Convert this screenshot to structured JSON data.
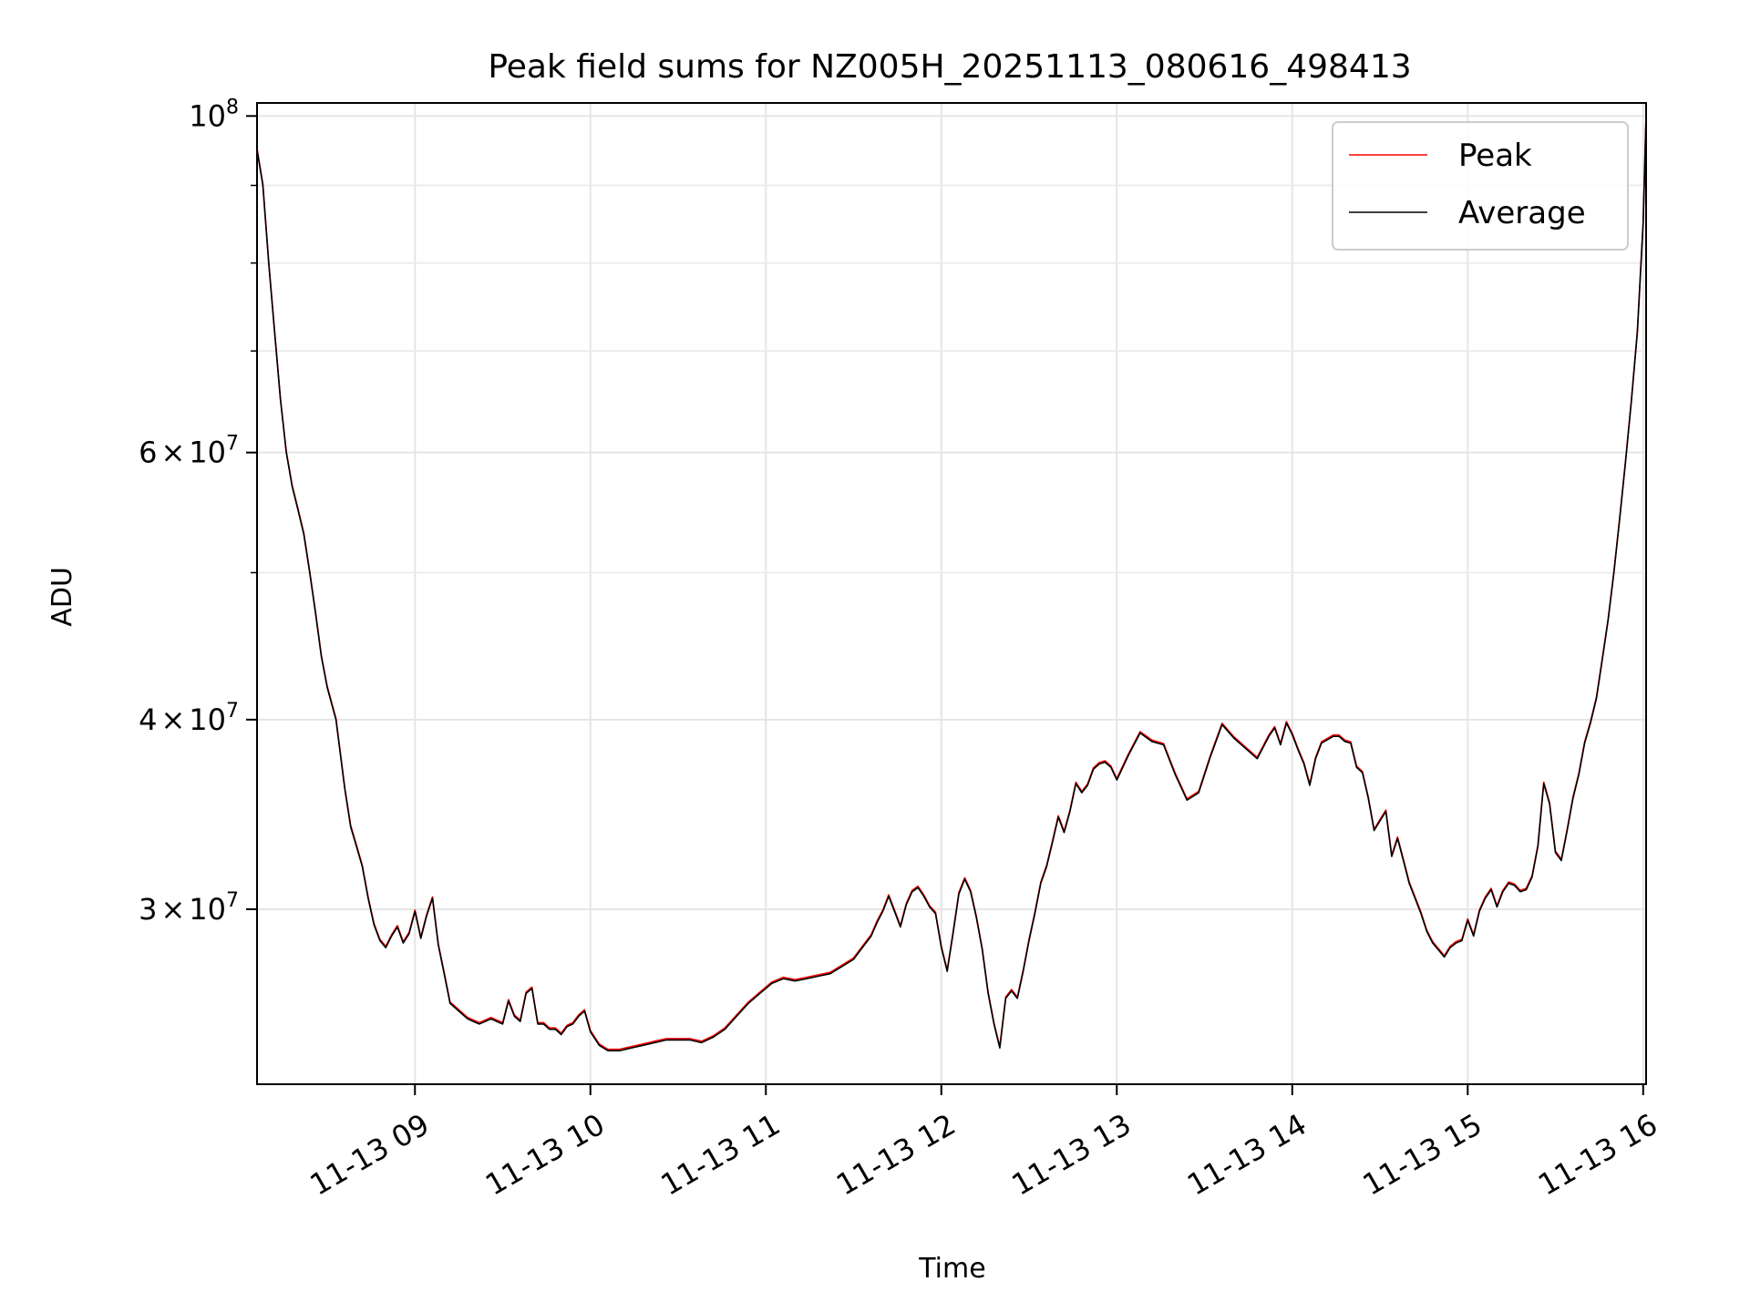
{
  "chart_data": {
    "type": "line",
    "title": "Peak field sums for NZ005H_20251113_080616_498413",
    "xlabel": "Time",
    "ylabel": "ADU",
    "yscale": "log",
    "grid": true,
    "legend_position": "top-right",
    "xlim": [
      "2025-11-13 08:06",
      "2025-11-13 16:01"
    ],
    "ylim": [
      23000000,
      102000000
    ],
    "x_ticks": [
      {
        "label": "11-13 09",
        "time": "2025-11-13 09:00"
      },
      {
        "label": "11-13 10",
        "time": "2025-11-13 10:00"
      },
      {
        "label": "11-13 11",
        "time": "2025-11-13 11:00"
      },
      {
        "label": "11-13 12",
        "time": "2025-11-13 12:00"
      },
      {
        "label": "11-13 13",
        "time": "2025-11-13 13:00"
      },
      {
        "label": "11-13 14",
        "time": "2025-11-13 14:00"
      },
      {
        "label": "11-13 15",
        "time": "2025-11-13 15:00"
      },
      {
        "label": "11-13 16",
        "time": "2025-11-13 16:00"
      }
    ],
    "y_ticks": [
      {
        "value": 100000000,
        "base": "10",
        "exp": "8"
      },
      {
        "value": 60000000,
        "mant": "6",
        "base": "10",
        "exp": "7"
      },
      {
        "value": 40000000,
        "mant": "4",
        "base": "10",
        "exp": "7"
      },
      {
        "value": 30000000,
        "mant": "3",
        "base": "10",
        "exp": "7"
      }
    ],
    "y_minor_ticks": [
      50000000,
      70000000,
      80000000,
      90000000
    ],
    "series": [
      {
        "name": "Peak",
        "color": "#ff0000"
      },
      {
        "name": "Average",
        "color": "#000000"
      }
    ],
    "x": [
      "08:06",
      "08:08",
      "08:10",
      "08:12",
      "08:14",
      "08:16",
      "08:18",
      "08:20",
      "08:22",
      "08:24",
      "08:26",
      "08:28",
      "08:30",
      "08:33",
      "08:36",
      "08:38",
      "08:40",
      "08:42",
      "08:44",
      "08:46",
      "08:48",
      "08:50",
      "08:52",
      "08:54",
      "08:56",
      "08:58",
      "09:00",
      "09:02",
      "09:04",
      "09:06",
      "09:08",
      "09:10",
      "09:12",
      "09:14",
      "09:16",
      "09:18",
      "09:20",
      "09:22",
      "09:24",
      "09:26",
      "09:28",
      "09:30",
      "09:32",
      "09:34",
      "09:36",
      "09:38",
      "09:40",
      "09:42",
      "09:44",
      "09:46",
      "09:48",
      "09:50",
      "09:52",
      "09:54",
      "09:56",
      "09:58",
      "10:00",
      "10:03",
      "10:06",
      "10:10",
      "10:14",
      "10:18",
      "10:22",
      "10:26",
      "10:30",
      "10:34",
      "10:38",
      "10:42",
      "10:46",
      "10:50",
      "10:54",
      "10:58",
      "11:02",
      "11:06",
      "11:10",
      "11:14",
      "11:18",
      "11:22",
      "11:26",
      "11:30",
      "11:33",
      "11:36",
      "11:38",
      "11:40",
      "11:42",
      "11:44",
      "11:46",
      "11:48",
      "11:50",
      "11:52",
      "11:54",
      "11:56",
      "11:58",
      "12:00",
      "12:02",
      "12:04",
      "12:06",
      "12:08",
      "12:10",
      "12:12",
      "12:14",
      "12:16",
      "12:18",
      "12:20",
      "12:22",
      "12:24",
      "12:26",
      "12:28",
      "12:30",
      "12:32",
      "12:34",
      "12:36",
      "12:38",
      "12:40",
      "12:42",
      "12:44",
      "12:46",
      "12:48",
      "12:50",
      "12:52",
      "12:54",
      "12:56",
      "12:58",
      "13:00",
      "13:04",
      "13:08",
      "13:12",
      "13:16",
      "13:20",
      "13:24",
      "13:28",
      "13:32",
      "13:36",
      "13:40",
      "13:44",
      "13:48",
      "13:52",
      "13:54",
      "13:56",
      "13:58",
      "14:00",
      "14:02",
      "14:04",
      "14:06",
      "14:08",
      "14:10",
      "14:12",
      "14:14",
      "14:16",
      "14:18",
      "14:20",
      "14:22",
      "14:24",
      "14:26",
      "14:28",
      "14:30",
      "14:32",
      "14:34",
      "14:36",
      "14:38",
      "14:40",
      "14:42",
      "14:44",
      "14:46",
      "14:48",
      "14:50",
      "14:52",
      "14:54",
      "14:56",
      "14:58",
      "15:00",
      "15:02",
      "15:04",
      "15:06",
      "15:08",
      "15:10",
      "15:12",
      "15:14",
      "15:16",
      "15:18",
      "15:20",
      "15:22",
      "15:24",
      "15:26",
      "15:28",
      "15:30",
      "15:32",
      "15:34",
      "15:36",
      "15:38",
      "15:40",
      "15:42",
      "15:44",
      "15:46",
      "15:48",
      "15:50",
      "15:52",
      "15:54",
      "15:56",
      "15:58",
      "16:00",
      "16:01"
    ],
    "y": [
      95000000,
      90000000,
      80000000,
      72000000,
      65000000,
      60000000,
      57000000,
      55000000,
      53000000,
      50000000,
      47000000,
      44000000,
      42000000,
      40000000,
      36000000,
      34000000,
      33000000,
      32000000,
      30500000,
      29300000,
      28600000,
      28300000,
      28800000,
      29200000,
      28500000,
      28900000,
      29900000,
      28700000,
      29700000,
      30500000,
      28400000,
      27200000,
      26000000,
      25800000,
      25600000,
      25400000,
      25300000,
      25200000,
      25300000,
      25400000,
      25300000,
      25200000,
      26100000,
      25500000,
      25300000,
      26400000,
      26600000,
      25200000,
      25200000,
      25000000,
      25000000,
      24800000,
      25100000,
      25200000,
      25500000,
      25700000,
      24900000,
      24400000,
      24200000,
      24200000,
      24300000,
      24400000,
      24500000,
      24600000,
      24600000,
      24600000,
      24500000,
      24700000,
      25000000,
      25500000,
      26000000,
      26400000,
      26800000,
      27000000,
      26900000,
      27000000,
      27100000,
      27200000,
      27500000,
      27800000,
      28300000,
      28800000,
      29400000,
      29900000,
      30600000,
      29900000,
      29200000,
      30200000,
      30800000,
      31000000,
      30600000,
      30100000,
      29800000,
      28300000,
      27300000,
      28900000,
      30700000,
      31400000,
      30800000,
      29600000,
      28200000,
      26400000,
      25200000,
      24300000,
      26200000,
      26500000,
      26200000,
      27300000,
      28600000,
      29800000,
      31200000,
      32000000,
      33200000,
      34500000,
      33700000,
      34800000,
      36300000,
      35800000,
      36200000,
      37100000,
      37400000,
      37500000,
      37200000,
      36500000,
      37900000,
      39200000,
      38700000,
      38500000,
      36800000,
      35400000,
      35800000,
      37800000,
      39700000,
      38900000,
      38300000,
      37700000,
      39000000,
      39500000,
      38500000,
      39800000,
      39100000,
      38200000,
      37400000,
      36200000,
      37700000,
      38600000,
      38800000,
      39000000,
      39000000,
      38700000,
      38600000,
      37200000,
      36900000,
      35500000,
      33800000,
      34300000,
      34800000,
      32500000,
      33400000,
      32300000,
      31200000,
      30500000,
      29800000,
      29000000,
      28500000,
      28200000,
      27900000,
      28300000,
      28500000,
      28600000,
      29500000,
      28800000,
      29900000,
      30500000,
      30900000,
      30100000,
      30800000,
      31200000,
      31100000,
      30800000,
      30900000,
      31500000,
      33000000,
      36300000,
      35200000,
      32700000,
      32300000,
      33800000,
      35500000,
      36800000,
      38600000,
      39800000,
      41300000,
      43800000,
      46500000,
      50000000,
      54300000,
      59200000,
      65000000,
      72000000,
      85000000,
      100000000
    ]
  }
}
